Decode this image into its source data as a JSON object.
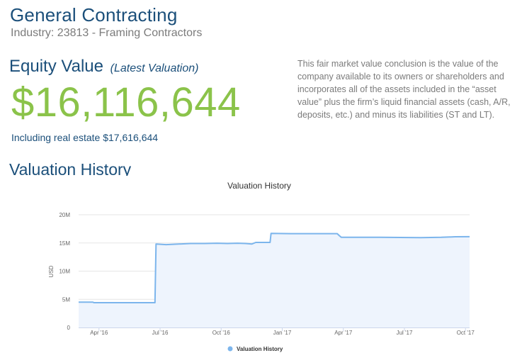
{
  "company": {
    "name": "General Contracting",
    "industry": "Industry: 23813 - Framing Contractors"
  },
  "equity": {
    "heading": "Equity Value",
    "subheading": "(Latest Valuation)",
    "amount": "$16,116,644",
    "real_estate_note": "Including real estate $17,616,644",
    "description": "This fair market value conclusion is the value of the company available to its owners or shareholders and incorporates all of the assets included in the “asset value” plus the firm’s liquid financial assets (cash, A/R, deposits, etc.) and minus its liabilities (ST and LT)."
  },
  "history": {
    "heading": "Valuation History"
  },
  "colors": {
    "line": "#7cb5ec",
    "fill": "#eef4fd",
    "grid": "#e6e6e6",
    "green": "#8bc34a",
    "navy": "#1b4f7a"
  },
  "chart_data": {
    "type": "area",
    "title": "Valuation History",
    "ylabel": "USD",
    "xlabel": "",
    "ylim": [
      0,
      20000000
    ],
    "xlim": [
      0,
      19.2
    ],
    "x_unit": "months since Mar 2016",
    "y_ticks": [
      0,
      5000000,
      10000000,
      15000000,
      20000000
    ],
    "y_tick_labels": [
      "0",
      "5M",
      "10M",
      "15M",
      "20M"
    ],
    "x_ticks": [
      1,
      4,
      7,
      10,
      13,
      16,
      19
    ],
    "x_tick_labels": [
      "Apr '16",
      "Jul '16",
      "Oct '16",
      "Jan '17",
      "Apr '17",
      "Jul '17",
      "Oct '17"
    ],
    "legend": {
      "position": "bottom-center",
      "entries": [
        "Valuation History"
      ]
    },
    "series": [
      {
        "name": "Valuation History",
        "x": [
          0,
          0.7,
          0.75,
          3.75,
          3.8,
          4.3,
          5.5,
          6.2,
          6.8,
          7.3,
          7.8,
          8.2,
          8.5,
          8.7,
          9.4,
          9.45,
          10.4,
          12.7,
          12.8,
          12.9,
          14.8,
          16.8,
          17.8,
          18.5,
          19.2
        ],
        "y": [
          4500000,
          4500000,
          4400000,
          4400000,
          14800000,
          14700000,
          14900000,
          14900000,
          14950000,
          14900000,
          14950000,
          14900000,
          14800000,
          15100000,
          15100000,
          16700000,
          16650000,
          16650000,
          16300000,
          16000000,
          16000000,
          15950000,
          16000000,
          16100000,
          16116644
        ]
      }
    ]
  }
}
